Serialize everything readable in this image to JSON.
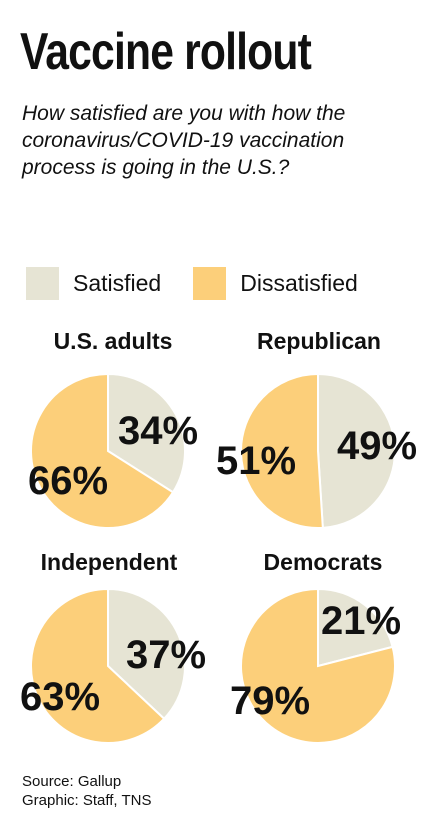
{
  "title": "Vaccine rollout",
  "subtitle": "How satisfied are you with how the coronavirus/COVID-19 vaccination process is going in the U.S.?",
  "legend": [
    {
      "label": "Satisfied",
      "color": "#e6e4d4"
    },
    {
      "label": "Dissatisfied",
      "color": "#fccf7a"
    }
  ],
  "chart_data": [
    {
      "type": "pie",
      "title": "U.S. adults",
      "categories": [
        "Satisfied",
        "Dissatisfied"
      ],
      "values": [
        34,
        66
      ],
      "labels": [
        "34%",
        "66%"
      ]
    },
    {
      "type": "pie",
      "title": "Republican",
      "categories": [
        "Satisfied",
        "Dissatisfied"
      ],
      "values": [
        49,
        51
      ],
      "labels": [
        "49%",
        "51%"
      ]
    },
    {
      "type": "pie",
      "title": "Independent",
      "categories": [
        "Satisfied",
        "Dissatisfied"
      ],
      "values": [
        37,
        63
      ],
      "labels": [
        "37%",
        "63%"
      ]
    },
    {
      "type": "pie",
      "title": "Democrats",
      "categories": [
        "Satisfied",
        "Dissatisfied"
      ],
      "values": [
        21,
        79
      ],
      "labels": [
        "21%",
        "79%"
      ]
    }
  ],
  "source": {
    "line1": "Source: Gallup",
    "line2": "Graphic: Staff, TNS"
  }
}
